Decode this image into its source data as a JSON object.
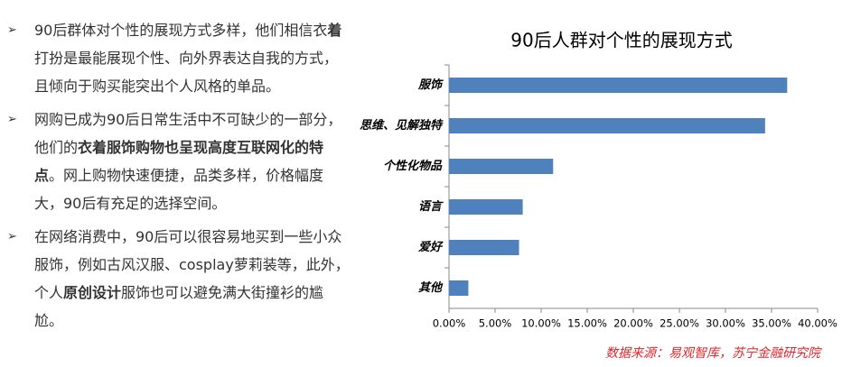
{
  "bullet_marker": "➢",
  "bullets": [
    [
      {
        "text": "90后群体对个性的展现方式多样，他们相信衣",
        "bold": false
      },
      {
        "text": "着",
        "bold": true
      },
      {
        "text": "打扮是最能展现个性、向外界表达自我的方式，且倾向于购买能突出个人风格的单品。",
        "bold": false
      }
    ],
    [
      {
        "text": "网购已成为90后日常生活中不可缺少的一部分，他们的",
        "bold": false
      },
      {
        "text": "衣着服饰购物也呈现高度互联网化的特点",
        "bold": true
      },
      {
        "text": "。网上购物快速便捷，品类多样，价格幅度大，90后有充足的选择空间。",
        "bold": false
      }
    ],
    [
      {
        "text": "在网络消费中，90后可以很容易地买到一些小众服饰，例如古风汉服、cosplay萝莉装等，此外，个人",
        "bold": false
      },
      {
        "text": "原创设计",
        "bold": true
      },
      {
        "text": "服饰也可以避免满大街撞衫的尴尬。",
        "bold": false
      }
    ]
  ],
  "chart_data": {
    "type": "barh",
    "title": "90后人群对个性的展现方式",
    "categories": [
      "服饰",
      "思维、见解独特",
      "个性化物品",
      "语言",
      "爱好",
      "其他"
    ],
    "values": [
      36.7,
      34.3,
      11.3,
      8.0,
      7.6,
      2.1
    ],
    "color": "#4f81bd",
    "xlim": [
      0,
      40
    ],
    "xticks": [
      {
        "value": 0,
        "label": "0.00%"
      },
      {
        "value": 5,
        "label": "5.00%"
      },
      {
        "value": 10,
        "label": "10.00%"
      },
      {
        "value": 15,
        "label": "15.00%"
      },
      {
        "value": 20,
        "label": "20.00%"
      },
      {
        "value": 25,
        "label": "25.00%"
      },
      {
        "value": 30,
        "label": "30.00%"
      },
      {
        "value": 35,
        "label": "35.00%"
      },
      {
        "value": 40,
        "label": "40.00%"
      }
    ],
    "grid": false,
    "source": "数据来源：易观智库，苏宁金融研究院"
  }
}
